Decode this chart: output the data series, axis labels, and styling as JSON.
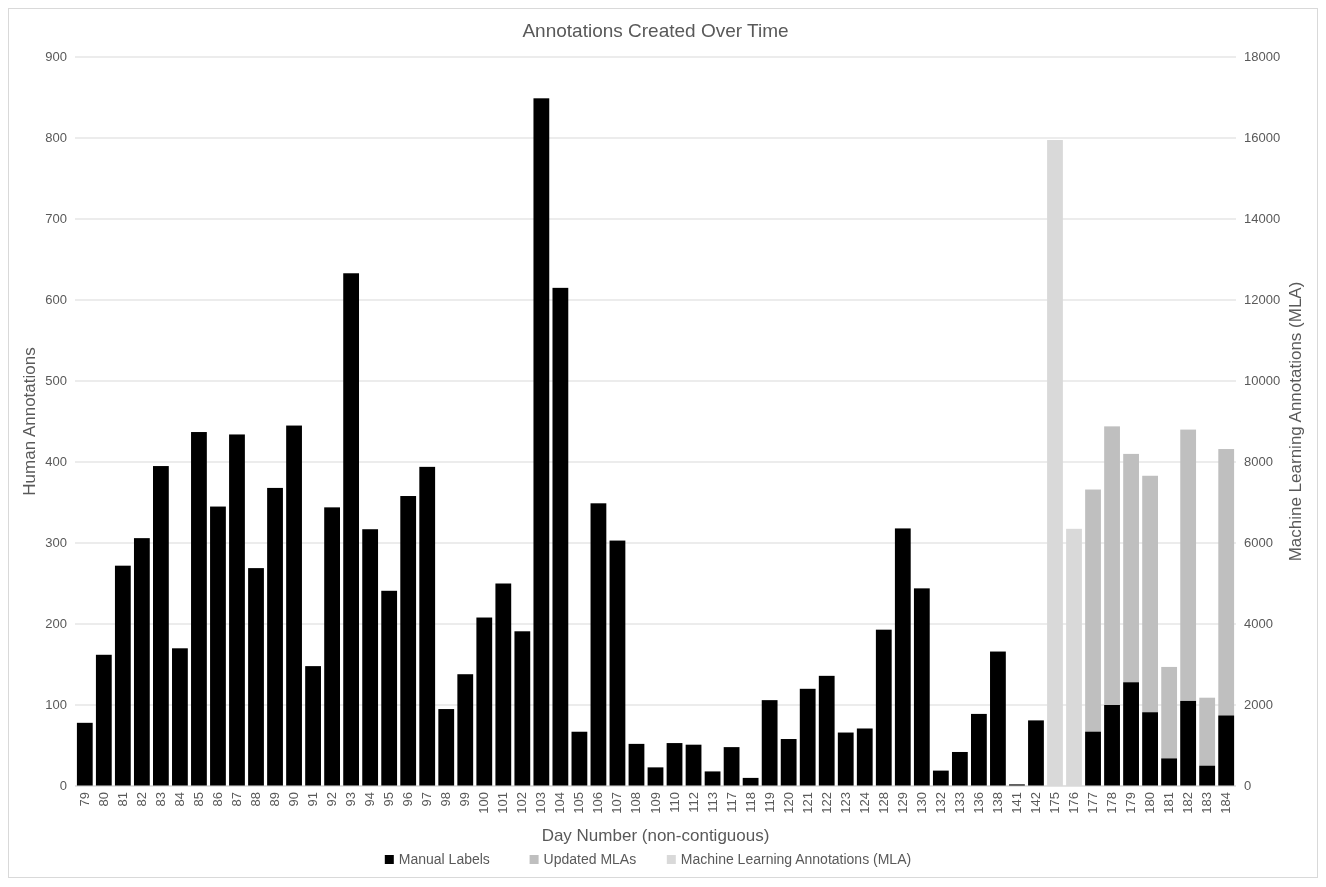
{
  "chart_data": {
    "type": "bar",
    "title": "Annotations Created Over Time",
    "xlabel": "Day Number (non-contiguous)",
    "ylabel": "Human Annotations",
    "y2label": "Machine Learning Annotations (MLA)",
    "categories": [
      "79",
      "80",
      "81",
      "82",
      "83",
      "84",
      "85",
      "86",
      "87",
      "88",
      "89",
      "90",
      "91",
      "92",
      "93",
      "94",
      "95",
      "96",
      "97",
      "98",
      "99",
      "100",
      "101",
      "102",
      "103",
      "104",
      "105",
      "106",
      "107",
      "108",
      "109",
      "110",
      "112",
      "113",
      "117",
      "118",
      "119",
      "120",
      "121",
      "122",
      "123",
      "124",
      "128",
      "129",
      "130",
      "132",
      "133",
      "136",
      "138",
      "141",
      "142",
      "175",
      "176",
      "177",
      "178",
      "179",
      "180",
      "181",
      "182",
      "183",
      "184"
    ],
    "series": [
      {
        "name": "Manual Labels",
        "color": "#000000",
        "values": [
          78,
          162,
          272,
          306,
          395,
          170,
          437,
          345,
          434,
          269,
          368,
          445,
          148,
          344,
          633,
          317,
          241,
          358,
          394,
          95,
          138,
          208,
          250,
          191,
          849,
          615,
          67,
          349,
          303,
          52,
          23,
          53,
          51,
          18,
          48,
          10,
          106,
          58,
          120,
          136,
          66,
          71,
          193,
          318,
          244,
          19,
          42,
          89,
          166,
          2,
          81,
          null,
          null,
          67,
          100,
          128,
          91,
          34,
          105,
          25,
          87
        ]
      },
      {
        "name": "Updated MLAs",
        "color": "#bfbfbf",
        "axis": "y2",
        "values": [
          null,
          null,
          null,
          null,
          null,
          null,
          null,
          null,
          null,
          null,
          null,
          null,
          null,
          null,
          null,
          null,
          null,
          null,
          null,
          null,
          null,
          null,
          null,
          null,
          null,
          null,
          null,
          null,
          null,
          null,
          null,
          null,
          null,
          null,
          null,
          null,
          null,
          null,
          null,
          null,
          null,
          null,
          null,
          null,
          null,
          null,
          null,
          null,
          null,
          null,
          null,
          null,
          null,
          7320,
          8880,
          8200,
          7660,
          2940,
          8800,
          2180,
          8320
        ]
      },
      {
        "name": "Machine Learning Annotations (MLA)",
        "color": "#d9d9d9",
        "axis": "y2",
        "values": [
          null,
          null,
          null,
          null,
          null,
          null,
          null,
          null,
          null,
          null,
          null,
          null,
          null,
          null,
          null,
          null,
          null,
          null,
          null,
          null,
          null,
          null,
          null,
          null,
          null,
          null,
          null,
          null,
          null,
          null,
          null,
          null,
          null,
          null,
          null,
          null,
          null,
          null,
          null,
          null,
          null,
          null,
          null,
          null,
          null,
          null,
          null,
          null,
          null,
          null,
          null,
          15950,
          6350,
          null,
          null,
          null,
          null,
          null,
          null,
          null,
          null
        ]
      }
    ],
    "ylim": [
      0,
      900
    ],
    "yticks": [
      0,
      100,
      200,
      300,
      400,
      500,
      600,
      700,
      800,
      900
    ],
    "y2lim": [
      0,
      18000
    ],
    "y2ticks": [
      0,
      2000,
      4000,
      6000,
      8000,
      10000,
      12000,
      14000,
      16000,
      18000
    ],
    "grid": "y",
    "legend": "bottom"
  }
}
